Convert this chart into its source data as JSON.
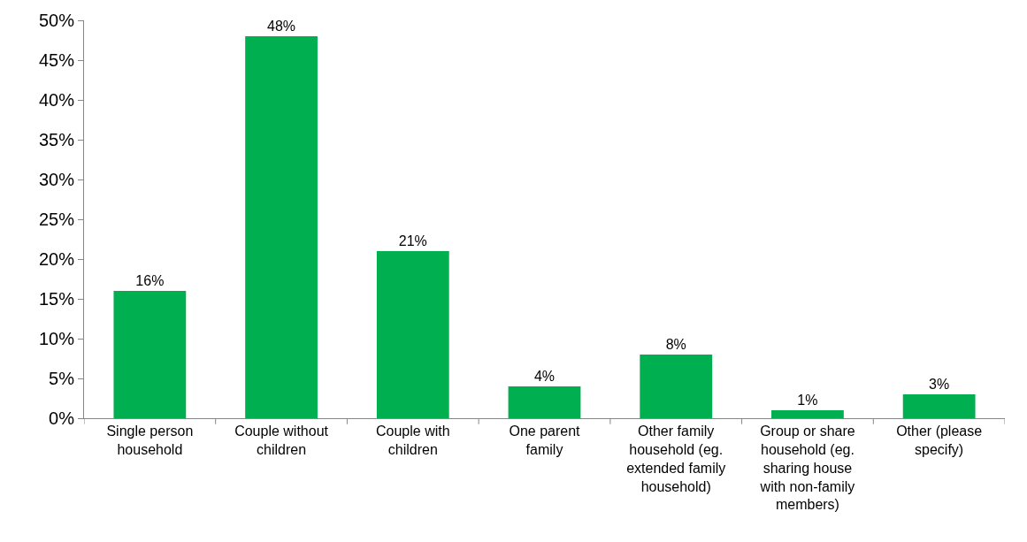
{
  "chart_data": {
    "type": "bar",
    "categories": [
      "Single person household",
      "Couple without children",
      "Couple with children",
      "One parent family",
      "Other family household (eg. extended family household)",
      "Group or share household (eg. sharing house with non-family members)",
      "Other (please specify)"
    ],
    "values": [
      16,
      48,
      21,
      4,
      8,
      1,
      3
    ],
    "value_labels": [
      "16%",
      "48%",
      "21%",
      "4%",
      "8%",
      "1%",
      "3%"
    ],
    "color": "#00b050",
    "ylim": [
      0,
      50
    ],
    "yticks": [
      {
        "value": 0,
        "label": "0%"
      },
      {
        "value": 5,
        "label": "5%"
      },
      {
        "value": 10,
        "label": "10%"
      },
      {
        "value": 15,
        "label": "15%"
      },
      {
        "value": 20,
        "label": "20%"
      },
      {
        "value": 25,
        "label": "25%"
      },
      {
        "value": 30,
        "label": "30%"
      },
      {
        "value": 35,
        "label": "35%"
      },
      {
        "value": 40,
        "label": "40%"
      },
      {
        "value": 45,
        "label": "45%"
      },
      {
        "value": 50,
        "label": "50%"
      }
    ],
    "grid": false
  }
}
